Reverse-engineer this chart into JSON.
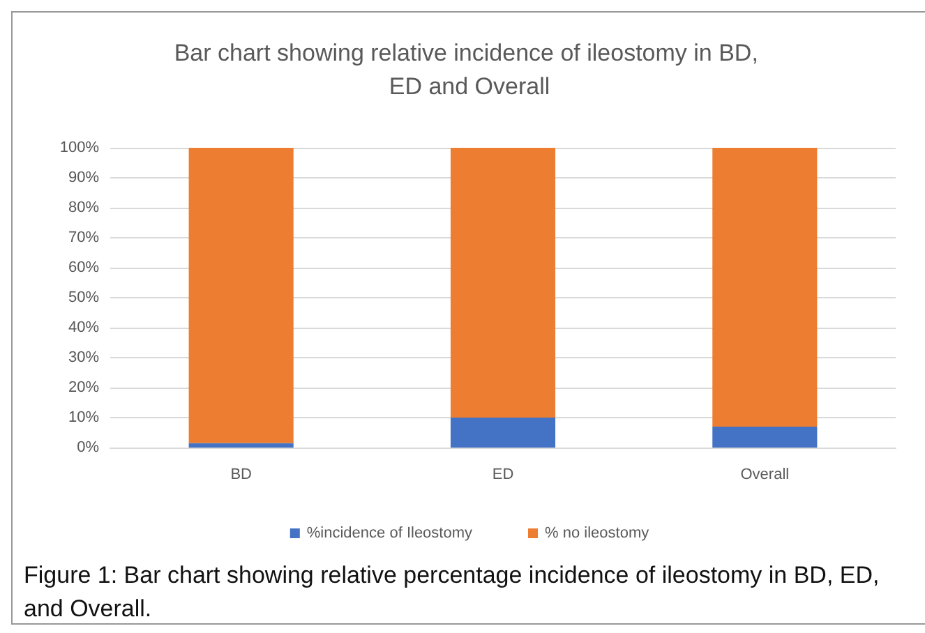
{
  "chart_data": {
    "type": "bar",
    "title": "Bar chart showing relative incidence of ileostomy in BD, ED and Overall",
    "categories": [
      "BD",
      "ED",
      "Overall"
    ],
    "stacked": true,
    "series": [
      {
        "name": "%incidence of Ileostomy",
        "color": "#4472c4",
        "values": [
          1.5,
          10,
          7
        ]
      },
      {
        "name": "% no ileostomy",
        "color": "#ed7d31",
        "values": [
          98.5,
          90,
          93
        ]
      }
    ],
    "ylim": [
      0,
      100
    ],
    "yticks": [
      {
        "value": 0,
        "label": "0%"
      },
      {
        "value": 10,
        "label": "10%"
      },
      {
        "value": 20,
        "label": "20%"
      },
      {
        "value": 30,
        "label": "30%"
      },
      {
        "value": 40,
        "label": "40%"
      },
      {
        "value": 50,
        "label": "50%"
      },
      {
        "value": 60,
        "label": "60%"
      },
      {
        "value": 70,
        "label": "70%"
      },
      {
        "value": 80,
        "label": "80%"
      },
      {
        "value": 90,
        "label": "90%"
      },
      {
        "value": 100,
        "label": "100%"
      }
    ],
    "grid": "y",
    "legend": "bottom",
    "annotations": [
      "Figure 1: Bar chart showing relative percentage incidence of ileostomy in BD, ED, and Overall."
    ]
  }
}
